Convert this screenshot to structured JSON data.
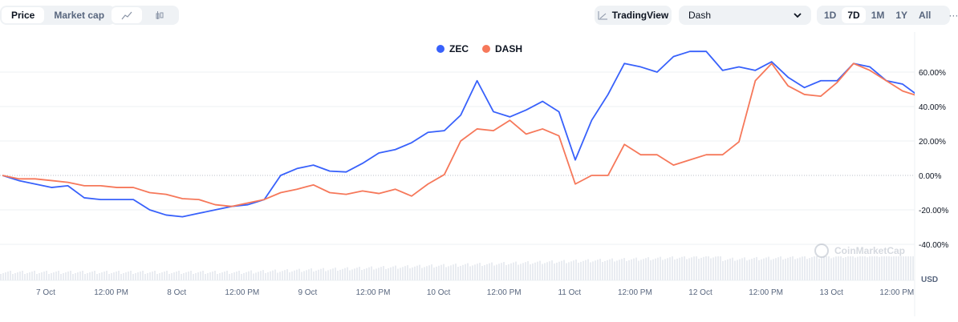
{
  "toolbar": {
    "metric_tabs": [
      {
        "label": "Price",
        "active": true
      },
      {
        "label": "Market cap",
        "active": false
      }
    ],
    "chart_type_icons": [
      "line-chart-icon",
      "candlestick-icon"
    ],
    "tradingview_label": "TradingView",
    "compare_select": "Dash",
    "timeframes": [
      {
        "label": "1D"
      },
      {
        "label": "7D",
        "active": true
      },
      {
        "label": "1M"
      },
      {
        "label": "1Y"
      },
      {
        "label": "All"
      }
    ],
    "more_label": "···"
  },
  "chart_data": {
    "type": "line",
    "legend": {
      "placement": "top-center",
      "entries": [
        "ZEC",
        "DASH"
      ]
    },
    "x_start": "6 Oct 16:00",
    "x_interval_hours": 3,
    "x_ticks": [
      "7 Oct",
      "12:00 PM",
      "8 Oct",
      "12:00 PM",
      "9 Oct",
      "12:00 PM",
      "10 Oct",
      "12:00 PM",
      "11 Oct",
      "12:00 PM",
      "12 Oct",
      "12:00 PM",
      "13 Oct",
      "12:00 PM"
    ],
    "y_ticks": [
      "60.00%",
      "40.00%",
      "20.00%",
      "0.00%",
      "-20.00%",
      "-40.00%"
    ],
    "y_tick_values": [
      60,
      40,
      20,
      0,
      -20,
      -40
    ],
    "ylim": [
      -52,
      80
    ],
    "y_unit_label": "USD",
    "grid": true,
    "series": [
      {
        "name": "ZEC",
        "color": "#3861fb",
        "values": [
          0,
          -3,
          -5,
          -7,
          -6,
          -13,
          -14,
          -14,
          -14,
          -20,
          -23,
          -24,
          -22,
          -20,
          -18,
          -17,
          -14,
          0,
          4,
          6,
          2.5,
          2,
          7,
          13,
          15,
          19,
          25,
          26,
          35,
          55,
          37,
          34,
          38,
          43,
          37,
          9,
          32,
          47,
          65,
          63,
          60,
          69,
          72,
          72,
          61,
          63,
          61,
          66,
          57,
          51,
          55,
          55,
          65,
          63,
          55,
          53,
          46
        ]
      },
      {
        "name": "DASH",
        "color": "#f6785a",
        "values": [
          0,
          -2,
          -2,
          -3,
          -4,
          -6,
          -6,
          -7,
          -7,
          -10,
          -11,
          -13.5,
          -14,
          -17,
          -18,
          -16,
          -14,
          -10,
          -8,
          -5.5,
          -10,
          -11,
          -9,
          -10.5,
          -8,
          -12,
          -5,
          0.5,
          20,
          27,
          26,
          32,
          24,
          27,
          23,
          -5,
          0,
          0,
          18,
          12,
          12,
          6,
          9,
          12,
          12,
          19.5,
          55,
          65,
          52,
          47,
          46,
          54,
          65,
          61,
          55,
          49,
          46
        ]
      }
    ]
  },
  "watermark": "CoinMarketCap"
}
